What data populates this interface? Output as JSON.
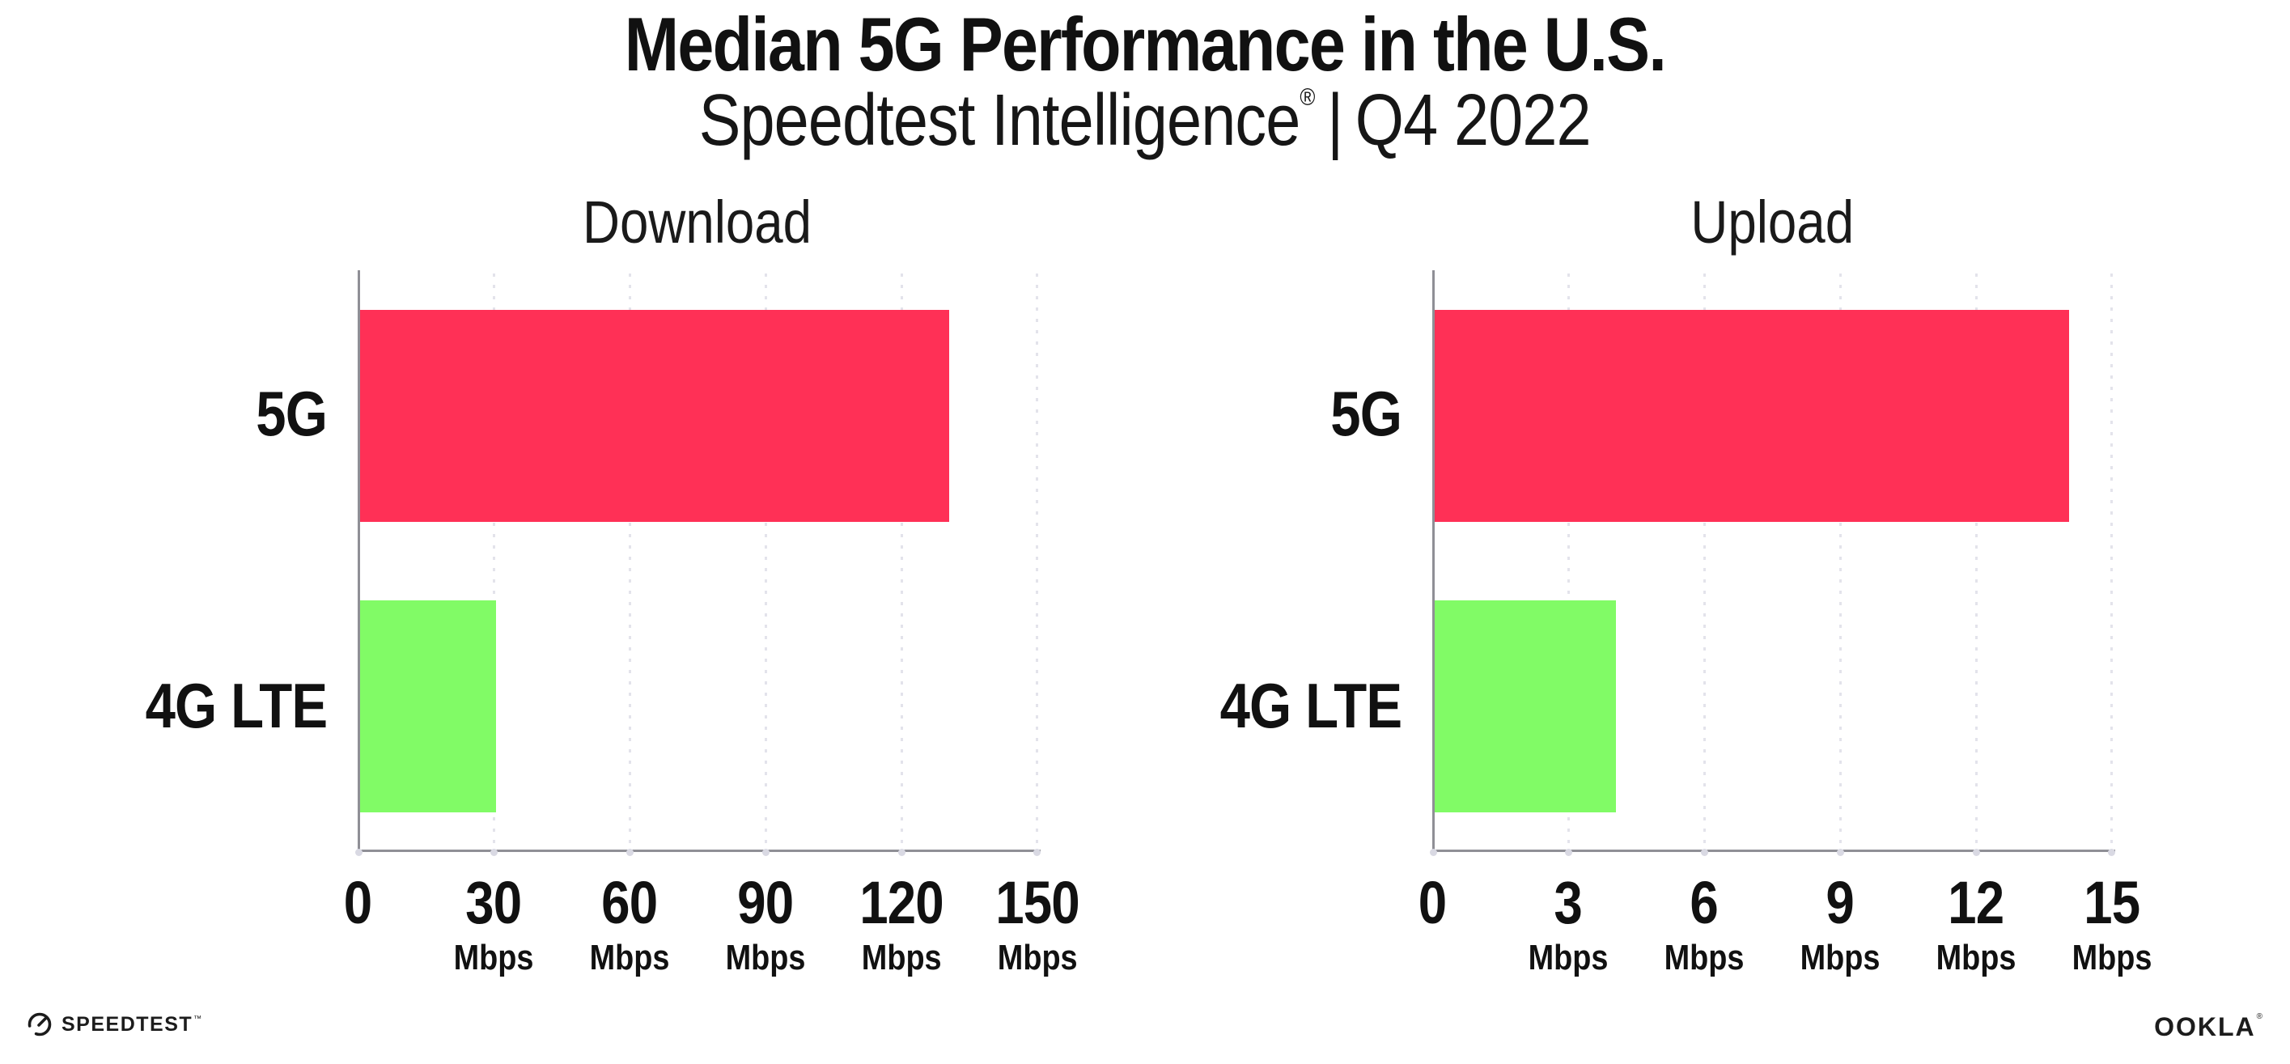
{
  "title": "Median 5G Performance in the U.S.",
  "subtitle": {
    "brand": "Speedtest Intelligence",
    "reg_mark": "®",
    "separator": "|",
    "period": "Q4 2022"
  },
  "colors": {
    "bar_5g": "#ff3056",
    "bar_4g_lte": "#81fb66",
    "axis": "#8f8f96",
    "gridline": "#e3e3eb",
    "tick_dot": "#d9d9e3",
    "text": "#111111",
    "background": "#ffffff"
  },
  "chart_data": [
    {
      "type": "bar",
      "orientation": "horizontal",
      "title": "Download",
      "categories": [
        "5G",
        "4G LTE"
      ],
      "values": [
        130,
        30
      ],
      "unit": "Mbps",
      "xlim": [
        0,
        150
      ],
      "grid": "dotted-vertical",
      "legend": false,
      "bar_colors": [
        "#ff3056",
        "#81fb66"
      ],
      "ticks": [
        {
          "label": "0",
          "unit": ""
        },
        {
          "label": "30",
          "unit": "Mbps"
        },
        {
          "label": "60",
          "unit": "Mbps"
        },
        {
          "label": "90",
          "unit": "Mbps"
        },
        {
          "label": "120",
          "unit": "Mbps"
        },
        {
          "label": "150",
          "unit": "Mbps"
        }
      ]
    },
    {
      "type": "bar",
      "orientation": "horizontal",
      "title": "Upload",
      "categories": [
        "5G",
        "4G LTE"
      ],
      "values": [
        14,
        4
      ],
      "unit": "Mbps",
      "xlim": [
        0,
        15
      ],
      "grid": "dotted-vertical",
      "legend": false,
      "bar_colors": [
        "#ff3056",
        "#81fb66"
      ],
      "ticks": [
        {
          "label": "0",
          "unit": ""
        },
        {
          "label": "3",
          "unit": "Mbps"
        },
        {
          "label": "6",
          "unit": "Mbps"
        },
        {
          "label": "9",
          "unit": "Mbps"
        },
        {
          "label": "12",
          "unit": "Mbps"
        },
        {
          "label": "15",
          "unit": "Mbps"
        }
      ]
    }
  ],
  "footer": {
    "speedtest_label": "SPEEDTEST",
    "speedtest_mark": "™",
    "ookla_label": "OOKLA",
    "ookla_mark": "®"
  }
}
